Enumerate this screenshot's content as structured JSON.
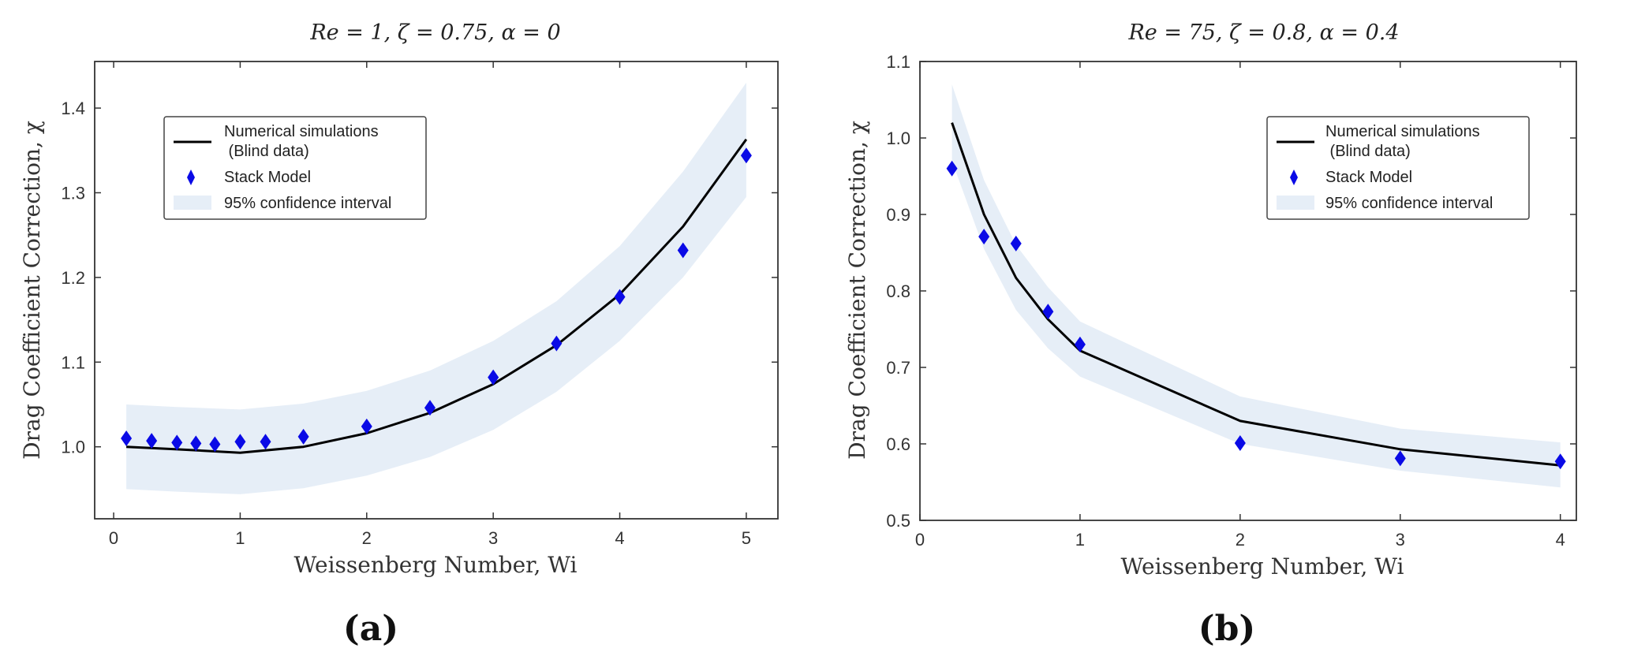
{
  "chart_data": [
    {
      "type": "line",
      "panel_label": "(a)",
      "title": "Re = 1,  ζ = 0.75,  α = 0",
      "xlabel": "Weissenberg Number,  Wi",
      "ylabel": "Drag Coefficient Correction,  χ",
      "xlim": [
        -0.15,
        5.25
      ],
      "ylim": [
        0.915,
        1.455
      ],
      "xticks": [
        0,
        1,
        2,
        3,
        4,
        5
      ],
      "xtick_labels": [
        "0",
        "1",
        "2",
        "3",
        "4",
        "5"
      ],
      "yticks": [
        1.0,
        1.1,
        1.2,
        1.3,
        1.4
      ],
      "ytick_labels": [
        "1.0",
        "1.1",
        "1.2",
        "1.3",
        "1.4"
      ],
      "grid": false,
      "legend_position": "upper-left",
      "legend": [
        "Numerical simulations",
        " (Blind data)",
        "Stack Model",
        "95% confidence interval"
      ],
      "series": [
        {
          "name": "Numerical simulations (Blind data)",
          "kind": "line",
          "color": "#000000",
          "x": [
            0.1,
            0.5,
            1.0,
            1.5,
            2.0,
            2.5,
            3.0,
            3.5,
            4.0,
            4.5,
            5.0
          ],
          "y": [
            1.0,
            0.997,
            0.993,
            1.0,
            1.016,
            1.04,
            1.074,
            1.12,
            1.18,
            1.26,
            1.363
          ]
        },
        {
          "name": "Stack Model",
          "kind": "markers",
          "color": "#0a0ae6",
          "x": [
            0.1,
            0.3,
            0.5,
            0.65,
            0.8,
            1.0,
            1.2,
            1.5,
            2.0,
            2.5,
            3.0,
            3.5,
            4.0,
            4.5,
            5.0
          ],
          "y": [
            1.01,
            1.007,
            1.005,
            1.004,
            1.003,
            1.006,
            1.006,
            1.012,
            1.024,
            1.046,
            1.082,
            1.122,
            1.177,
            1.232,
            1.344
          ]
        },
        {
          "name": "95% confidence interval",
          "kind": "band",
          "color": "#e6eef7",
          "x": [
            0.1,
            0.5,
            1.0,
            1.5,
            2.0,
            2.5,
            3.0,
            3.5,
            4.0,
            4.5,
            5.0
          ],
          "lower": [
            0.95,
            0.947,
            0.944,
            0.951,
            0.966,
            0.988,
            1.02,
            1.065,
            1.125,
            1.2,
            1.295
          ],
          "upper": [
            1.05,
            1.047,
            1.044,
            1.051,
            1.066,
            1.09,
            1.125,
            1.172,
            1.237,
            1.325,
            1.43
          ]
        }
      ]
    },
    {
      "type": "line",
      "panel_label": "(b)",
      "title": "Re = 75,  ζ = 0.8,  α = 0.4",
      "xlabel": "Weissenberg Number,  Wi",
      "ylabel": "Drag Coefficient Correction,  χ",
      "xlim": [
        0,
        4.1
      ],
      "ylim": [
        0.5,
        1.1
      ],
      "xticks": [
        0,
        1,
        2,
        3,
        4
      ],
      "xtick_labels": [
        "0",
        "1",
        "2",
        "3",
        "4"
      ],
      "yticks": [
        0.5,
        0.6,
        0.7,
        0.8,
        0.9,
        1.0,
        1.1
      ],
      "ytick_labels": [
        "0.5",
        "0.6",
        "0.7",
        "0.8",
        "0.9",
        "1.0",
        "1.1"
      ],
      "grid": false,
      "legend_position": "upper-right",
      "legend": [
        "Numerical simulations",
        " (Blind data)",
        "Stack Model",
        "95% confidence interval"
      ],
      "series": [
        {
          "name": "Numerical simulations (Blind data)",
          "kind": "line",
          "color": "#000000",
          "x": [
            0.2,
            0.4,
            0.6,
            0.8,
            1.0,
            2.0,
            3.0,
            4.0
          ],
          "y": [
            1.02,
            0.9,
            0.817,
            0.763,
            0.722,
            0.63,
            0.593,
            0.572
          ]
        },
        {
          "name": "Stack Model",
          "kind": "markers",
          "color": "#0a0ae6",
          "x": [
            0.2,
            0.4,
            0.6,
            0.8,
            1.0,
            2.0,
            3.0,
            4.0
          ],
          "y": [
            0.96,
            0.871,
            0.862,
            0.773,
            0.73,
            0.601,
            0.581,
            0.577
          ]
        },
        {
          "name": "95% confidence interval",
          "kind": "band",
          "color": "#e6eef7",
          "x": [
            0.2,
            0.4,
            0.6,
            0.8,
            1.0,
            2.0,
            3.0,
            4.0
          ],
          "lower": [
            0.97,
            0.855,
            0.775,
            0.725,
            0.688,
            0.6,
            0.565,
            0.543
          ],
          "upper": [
            1.07,
            0.945,
            0.86,
            0.805,
            0.76,
            0.662,
            0.62,
            0.602
          ]
        }
      ]
    }
  ]
}
